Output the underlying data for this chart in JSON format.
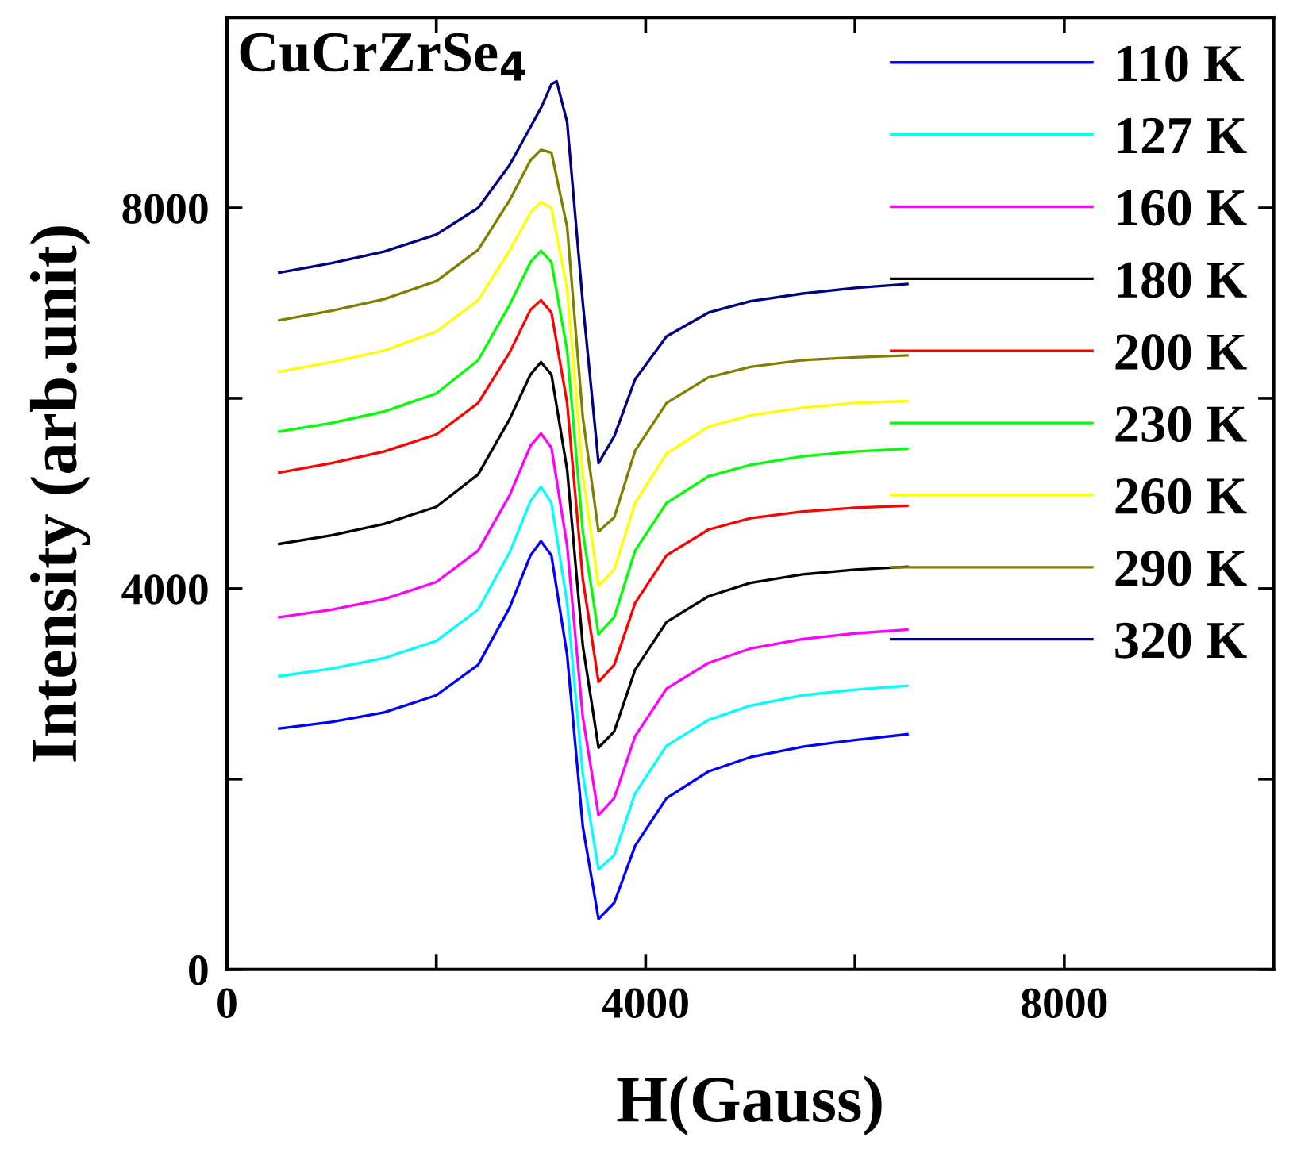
{
  "chart_data": {
    "type": "line",
    "xlabel": "H(Gauss)",
    "ylabel": "Intensity (arb.unit)",
    "annotations": [
      "CuCrZrSe$_{4}$"
    ],
    "xlim": [
      0,
      10000
    ],
    "ylim": [
      0,
      10000
    ],
    "xticks": [
      0,
      {
        "value": 2000,
        "label": null
      },
      4000,
      {
        "value": 6000,
        "label": null
      },
      8000
    ],
    "yticks": [
      0,
      {
        "value": 2000,
        "label": null
      },
      4000,
      {
        "value": 6000,
        "label": null
      },
      8000
    ],
    "grid": false,
    "legend": "top right",
    "marker": "none",
    "line_style": "solid",
    "x": [
      500,
      1000,
      1500,
      2000,
      2400,
      2700,
      2900,
      3000,
      3100,
      3250,
      3400,
      3550,
      3700,
      3900,
      4200,
      4600,
      5000,
      5500,
      6000,
      6500
    ],
    "series": [
      {
        "name": "110 K",
        "color": "#0000ff",
        "values": [
          2530,
          2600,
          2700,
          2880,
          3200,
          3800,
          4350,
          4500,
          4350,
          3300,
          1500,
          530,
          700,
          1300,
          1800,
          2080,
          2230,
          2340,
          2410,
          2470
        ]
      },
      {
        "name": "127 K",
        "color": "#00ffff",
        "values": [
          3080,
          3160,
          3270,
          3450,
          3780,
          4380,
          4920,
          5070,
          4900,
          3850,
          2050,
          1050,
          1200,
          1850,
          2350,
          2620,
          2770,
          2880,
          2940,
          2980
        ]
      },
      {
        "name": "160 K",
        "color": "#ff00ff",
        "values": [
          3700,
          3780,
          3890,
          4070,
          4400,
          4980,
          5500,
          5630,
          5480,
          4450,
          2650,
          1620,
          1800,
          2450,
          2950,
          3220,
          3370,
          3470,
          3530,
          3570
        ]
      },
      {
        "name": "180 K",
        "color": "#000000",
        "values": [
          4470,
          4560,
          4680,
          4860,
          5200,
          5780,
          6250,
          6380,
          6250,
          5250,
          3400,
          2330,
          2500,
          3150,
          3650,
          3920,
          4060,
          4150,
          4200,
          4230
        ]
      },
      {
        "name": "200 K",
        "color": "#ff0000",
        "values": [
          5220,
          5320,
          5440,
          5620,
          5950,
          6480,
          6930,
          7030,
          6900,
          5950,
          4100,
          3020,
          3200,
          3850,
          4350,
          4620,
          4740,
          4810,
          4850,
          4870
        ]
      },
      {
        "name": "230 K",
        "color": "#00ff00",
        "values": [
          5650,
          5740,
          5860,
          6050,
          6400,
          6980,
          7430,
          7550,
          7430,
          6500,
          4600,
          3520,
          3700,
          4400,
          4900,
          5180,
          5300,
          5390,
          5440,
          5470
        ]
      },
      {
        "name": "260 K",
        "color": "#ffff00",
        "values": [
          6280,
          6380,
          6500,
          6700,
          7030,
          7550,
          7950,
          8060,
          8000,
          7150,
          5200,
          4030,
          4200,
          4900,
          5420,
          5700,
          5820,
          5900,
          5950,
          5970
        ]
      },
      {
        "name": "290 K",
        "color": "#808000",
        "values": [
          6820,
          6920,
          7040,
          7230,
          7560,
          8080,
          8500,
          8610,
          8580,
          7800,
          5800,
          4600,
          4750,
          5450,
          5950,
          6220,
          6330,
          6400,
          6430,
          6450
        ]
      },
      {
        "name": "320 K",
        "color": "#000080",
        "x": [
          500,
          1000,
          1500,
          2000,
          2400,
          2700,
          2900,
          3000,
          3100,
          3150,
          3250,
          3400,
          3550,
          3700,
          3900,
          4200,
          4600,
          5000,
          5500,
          6000,
          6500
        ],
        "values": [
          7320,
          7420,
          7540,
          7720,
          8000,
          8450,
          8850,
          9050,
          9300,
          9330,
          8900,
          7000,
          5320,
          5600,
          6200,
          6650,
          6900,
          7020,
          7100,
          7160,
          7200
        ]
      }
    ]
  }
}
